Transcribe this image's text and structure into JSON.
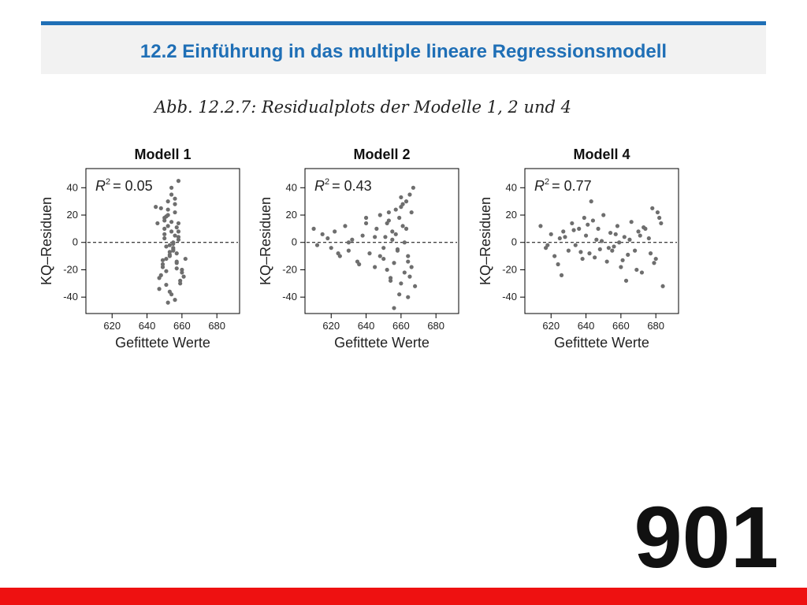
{
  "header": {
    "title": "12.2 Einführung in das multiple lineare Regressionsmodell",
    "accent_color": "#1f6fb6"
  },
  "figure": {
    "caption": "Abb. 12.2.7: Residualplots der Modelle 1, 2 und 4"
  },
  "slide_number": "901",
  "footer": {
    "bar_color": "#ee1111"
  },
  "chart_data": [
    {
      "type": "scatter",
      "title": "Modell 1",
      "annotation": {
        "label": "R",
        "superscript": "2",
        "value": "= 0.05"
      },
      "xlabel": "Gefittete Werte",
      "ylabel": "KQ–Residuen",
      "xlim": [
        605,
        693
      ],
      "ylim": [
        -52,
        54
      ],
      "xticks": [
        620,
        640,
        660,
        680
      ],
      "yticks": [
        40,
        20,
        0,
        -20,
        -40
      ],
      "reference_line_y": 0,
      "point_color": "#6e6e6e",
      "x": [
        648,
        650,
        652,
        654,
        656,
        658,
        651,
        655,
        653,
        657,
        649,
        660,
        647,
        659,
        652,
        656,
        654,
        650,
        658,
        655,
        653,
        657,
        651,
        649,
        660,
        648,
        654,
        656,
        652,
        658,
        650,
        655,
        653,
        657,
        651,
        659,
        647,
        654,
        656,
        652,
        650,
        658,
        655,
        653,
        649,
        657,
        661,
        651,
        654,
        656,
        646,
        662,
        645,
        652,
        658,
        650,
        655,
        657,
        653,
        651
      ],
      "y": [
        25,
        18,
        12,
        8,
        5,
        2,
        -3,
        -6,
        -10,
        -14,
        -18,
        -22,
        -26,
        -30,
        30,
        22,
        15,
        10,
        4,
        0,
        -2,
        -8,
        -12,
        -16,
        -20,
        -24,
        35,
        28,
        20,
        14,
        6,
        -4,
        -9,
        -15,
        -21,
        -28,
        -34,
        40,
        32,
        24,
        16,
        8,
        -1,
        -7,
        -13,
        -19,
        -25,
        -31,
        -38,
        -42,
        14,
        -12,
        26,
        -44,
        45,
        3,
        -5,
        11,
        -36,
        19
      ]
    },
    {
      "type": "scatter",
      "title": "Modell 2",
      "annotation": {
        "label": "R",
        "superscript": "2",
        "value": "= 0.43"
      },
      "xlabel": "Gefittete Werte",
      "ylabel": "KQ–Residuen",
      "xlim": [
        605,
        693
      ],
      "ylim": [
        -52,
        54
      ],
      "xticks": [
        620,
        640,
        660,
        680
      ],
      "yticks": [
        40,
        20,
        0,
        -20,
        -40
      ],
      "reference_line_y": 0,
      "point_color": "#6e6e6e",
      "x": [
        610,
        612,
        615,
        618,
        620,
        622,
        625,
        628,
        630,
        632,
        635,
        638,
        640,
        642,
        645,
        646,
        648,
        650,
        651,
        652,
        653,
        654,
        655,
        656,
        657,
        658,
        659,
        660,
        661,
        662,
        663,
        664,
        665,
        666,
        667,
        668,
        655,
        658,
        660,
        662,
        664,
        666,
        650,
        652,
        654,
        657,
        659,
        661,
        663,
        665,
        645,
        648,
        640,
        636,
        630,
        624,
        656,
        660,
        664,
        653
      ],
      "y": [
        10,
        -2,
        6,
        3,
        -4,
        8,
        -10,
        12,
        -6,
        2,
        -14,
        5,
        14,
        -8,
        -18,
        10,
        20,
        -12,
        4,
        -20,
        16,
        -26,
        8,
        -15,
        24,
        -5,
        18,
        -30,
        12,
        -22,
        30,
        -10,
        35,
        -18,
        40,
        -32,
        2,
        -6,
        26,
        0,
        -14,
        22,
        -4,
        14,
        -28,
        6,
        -38,
        28,
        10,
        -25,
        4,
        -10,
        18,
        -16,
        0,
        -8,
        -48,
        33,
        -40,
        22
      ]
    },
    {
      "type": "scatter",
      "title": "Modell 4",
      "annotation": {
        "label": "R",
        "superscript": "2",
        "value": "= 0.77"
      },
      "xlabel": "Gefittete Werte",
      "ylabel": "KQ–Residuen",
      "xlim": [
        605,
        693
      ],
      "ylim": [
        -52,
        54
      ],
      "xticks": [
        620,
        640,
        660,
        680
      ],
      "yticks": [
        40,
        20,
        0,
        -20,
        -40
      ],
      "reference_line_y": 0,
      "point_color": "#6e6e6e",
      "x": [
        614,
        617,
        620,
        622,
        625,
        627,
        630,
        632,
        634,
        636,
        638,
        640,
        642,
        644,
        646,
        648,
        650,
        652,
        654,
        656,
        658,
        660,
        662,
        664,
        666,
        668,
        670,
        672,
        674,
        676,
        678,
        680,
        682,
        684,
        618,
        624,
        628,
        633,
        637,
        641,
        645,
        649,
        653,
        657,
        661,
        665,
        669,
        673,
        677,
        681,
        626,
        639,
        647,
        655,
        663,
        671,
        679,
        683,
        643,
        659
      ],
      "y": [
        12,
        -4,
        6,
        -10,
        3,
        8,
        -6,
        14,
        -2,
        10,
        -12,
        5,
        -8,
        16,
        2,
        -5,
        20,
        -14,
        7,
        -3,
        12,
        -18,
        4,
        -9,
        15,
        -6,
        8,
        -22,
        10,
        3,
        25,
        -12,
        18,
        -32,
        -2,
        -16,
        4,
        9,
        -7,
        13,
        -11,
        1,
        -4,
        6,
        -13,
        2,
        -20,
        11,
        -8,
        22,
        -24,
        18,
        10,
        -6,
        -28,
        5,
        -15,
        14,
        30,
        0
      ]
    }
  ]
}
